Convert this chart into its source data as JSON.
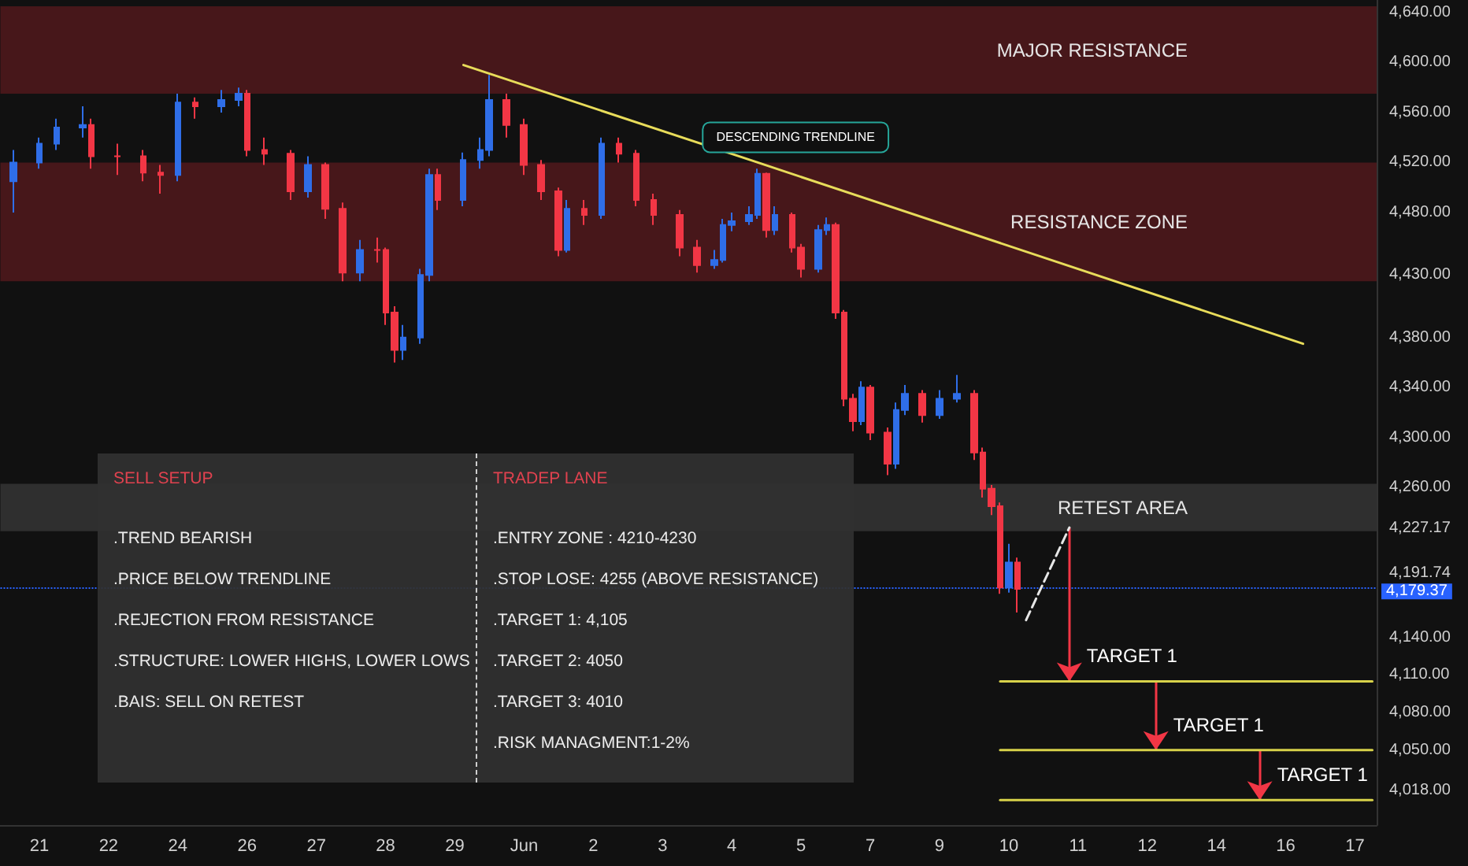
{
  "chart_data": [
    {
      "type": "candlestick",
      "categories": [
        null,
        null,
        null,
        null,
        "21",
        null,
        null,
        null,
        null,
        null,
        null,
        null,
        "22",
        null,
        null,
        null,
        null,
        null,
        null,
        null,
        "24",
        null,
        null,
        null,
        null,
        null,
        null,
        null,
        "26",
        null,
        null,
        null,
        null,
        null,
        null,
        null,
        "27",
        null,
        null,
        null,
        null,
        null,
        null,
        null,
        "28",
        null,
        null,
        null,
        null,
        null,
        null,
        null,
        "29",
        null,
        null,
        null,
        null,
        null,
        null,
        null,
        "Jun",
        null,
        null,
        null,
        null,
        null,
        null,
        null,
        "2",
        null,
        null,
        null,
        null,
        null,
        null,
        null,
        "3",
        null,
        null,
        null,
        null,
        null,
        null,
        null,
        "4",
        null,
        null,
        null,
        null,
        null,
        null,
        null,
        "5",
        null,
        null,
        null,
        null,
        null,
        null,
        null,
        "7",
        null,
        null,
        null,
        null,
        null,
        null,
        null,
        "9",
        null,
        null,
        null,
        null,
        null,
        null,
        null,
        "10",
        null,
        null,
        null,
        null,
        null,
        null,
        null,
        "11",
        null,
        null,
        null,
        null,
        null,
        null,
        null,
        "12",
        null,
        null,
        null,
        null,
        null,
        null,
        null,
        "14",
        null,
        null,
        null,
        null,
        null,
        null,
        null,
        "16",
        null,
        null,
        null,
        null,
        null,
        null,
        null,
        "17",
        null,
        null
      ],
      "ohlc": [
        null,
        [
          4505,
          4530,
          4480,
          4520
        ],
        null,
        null,
        [
          4520,
          4540,
          4515,
          4535
        ],
        null,
        [
          4535,
          4555,
          4530,
          4548
        ],
        null,
        null,
        [
          4548,
          4565,
          4540,
          4550
        ],
        [
          4550,
          4555,
          4515,
          4525
        ],
        null,
        null,
        [
          4525,
          4535,
          4510,
          4525
        ],
        null,
        null,
        [
          4525,
          4530,
          4505,
          4512
        ],
        null,
        [
          4512,
          4518,
          4495,
          4510
        ],
        null,
        [
          4510,
          4575,
          4505,
          4568
        ],
        null,
        [
          4568,
          4572,
          4555,
          4565
        ],
        null,
        null,
        [
          4565,
          4578,
          4560,
          4570
        ],
        null,
        [
          4570,
          4580,
          4565,
          4575
        ],
        [
          4575,
          4578,
          4525,
          4530
        ],
        null,
        [
          4530,
          4540,
          4518,
          4527
        ],
        null,
        null,
        [
          4527,
          4530,
          4490,
          4497
        ],
        null,
        [
          4497,
          4525,
          4492,
          4518
        ],
        null,
        [
          4518,
          4520,
          4475,
          4483
        ],
        null,
        [
          4483,
          4488,
          4425,
          4432
        ],
        null,
        [
          4432,
          4458,
          4425,
          4450
        ],
        null,
        [
          4450,
          4460,
          4440,
          4450
        ],
        [
          4450,
          4452,
          4390,
          4400
        ],
        [
          4400,
          4405,
          4360,
          4370
        ],
        [
          4370,
          4390,
          4362,
          4380
        ],
        null,
        [
          4380,
          4435,
          4375,
          4430
        ],
        [
          4430,
          4515,
          4425,
          4510
        ],
        [
          4510,
          4515,
          4482,
          4490
        ],
        null,
        null,
        [
          4490,
          4528,
          4485,
          4522
        ],
        null,
        [
          4522,
          4540,
          4515,
          4530
        ],
        [
          4530,
          4590,
          4525,
          4570
        ],
        null,
        [
          4570,
          4575,
          4540,
          4550
        ],
        null,
        [
          4550,
          4555,
          4510,
          4518
        ],
        null,
        [
          4518,
          4522,
          4490,
          4497
        ],
        null,
        [
          4497,
          4500,
          4445,
          4450
        ],
        [
          4450,
          4490,
          4448,
          4483
        ],
        null,
        [
          4483,
          4490,
          4470,
          4478
        ],
        null,
        [
          4478,
          4540,
          4475,
          4535
        ],
        null,
        [
          4535,
          4540,
          4520,
          4527
        ],
        null,
        [
          4527,
          4530,
          4485,
          4490
        ],
        null,
        [
          4490,
          4495,
          4470,
          4478
        ],
        null,
        null,
        [
          4478,
          4482,
          4445,
          4452
        ],
        null,
        [
          4452,
          4458,
          4432,
          4438
        ],
        null,
        [
          4438,
          4450,
          4435,
          4442
        ],
        [
          4442,
          4475,
          4440,
          4470
        ],
        [
          4470,
          4480,
          4465,
          4473
        ],
        null,
        [
          4473,
          4485,
          4470,
          4478
        ],
        [
          4478,
          4515,
          4475,
          4511
        ],
        [
          4511,
          4512,
          4460,
          4466
        ],
        [
          4466,
          4485,
          4462,
          4478
        ],
        null,
        [
          4478,
          4480,
          4448,
          4452
        ],
        [
          4452,
          4455,
          4428,
          4435
        ],
        null,
        [
          4435,
          4470,
          4432,
          4466
        ],
        [
          4466,
          4476,
          4462,
          4470
        ],
        [
          4470,
          4472,
          4395,
          4400
        ],
        [
          4400,
          4402,
          4325,
          4331
        ],
        [
          4331,
          4335,
          4305,
          4313
        ],
        [
          4313,
          4345,
          4310,
          4340
        ],
        [
          4340,
          4342,
          4298,
          4304
        ],
        null,
        [
          4304,
          4308,
          4270,
          4279
        ],
        [
          4279,
          4328,
          4275,
          4322
        ],
        [
          4322,
          4342,
          4318,
          4335
        ],
        null,
        [
          4335,
          4338,
          4312,
          4318
        ],
        null,
        [
          4318,
          4338,
          4315,
          4331
        ],
        null,
        [
          4331,
          4350,
          4328,
          4335
        ],
        null,
        [
          4335,
          4338,
          4282,
          4288
        ],
        [
          4288,
          4292,
          4252,
          4259
        ],
        [
          4259,
          4262,
          4238,
          4245
        ],
        [
          4245,
          4248,
          4175,
          4180
        ],
        [
          4180,
          4215,
          4176,
          4200
        ],
        [
          4200,
          4204,
          4160,
          4179
        ],
        null,
        null,
        null,
        null,
        null,
        null,
        null,
        null,
        null,
        null,
        null,
        null,
        null,
        null,
        null,
        null,
        null,
        null,
        null,
        null,
        null,
        null,
        null,
        null,
        null,
        null,
        null,
        null,
        null,
        null,
        null,
        null,
        null,
        null,
        null,
        null,
        null,
        null,
        null,
        null,
        null
      ],
      "series": [
        {
          "type": "line",
          "name": "DESCENDING TRENDLINE",
          "color": "#e8dc5a",
          "values": [
            null,
            null,
            null,
            null,
            null,
            null,
            null,
            null,
            null,
            null,
            null,
            null,
            null,
            null,
            null,
            null,
            null,
            null,
            null,
            null,
            null,
            null,
            null,
            null,
            null,
            null,
            null,
            null,
            null,
            null,
            null,
            null,
            null,
            null,
            null,
            null,
            null,
            null,
            null,
            null,
            null,
            null,
            null,
            null,
            null,
            null,
            null,
            null,
            null,
            null,
            null,
            null,
            null,
            4598,
            null,
            null,
            null,
            null,
            null,
            null,
            null,
            null,
            null,
            null,
            null,
            null,
            null,
            null,
            null,
            null,
            null,
            null,
            null,
            null,
            null,
            null,
            null,
            null,
            null,
            null,
            null,
            null,
            null,
            null,
            null,
            null,
            null,
            4520,
            null,
            null,
            null,
            null,
            null,
            null,
            null,
            null,
            null,
            null,
            null,
            null,
            null,
            null,
            null,
            null,
            null,
            null,
            null,
            null,
            null,
            null,
            null,
            null,
            null,
            null,
            null,
            null,
            null,
            null,
            null,
            null,
            null,
            null,
            null,
            null,
            null,
            null,
            null,
            null,
            null,
            null,
            null,
            null,
            null,
            null,
            null,
            null,
            null,
            null,
            null,
            null,
            null,
            null,
            null,
            null,
            null,
            null,
            null,
            null,
            null,
            null,
            4375,
            null,
            null,
            null,
            null,
            null,
            null,
            null,
            null
          ]
        },
        {
          "type": "line",
          "color": "#e6e6e6",
          "line_style": "dashed",
          "values": [
            null,
            null,
            null,
            null,
            null,
            null,
            null,
            null,
            null,
            null,
            null,
            null,
            null,
            null,
            null,
            null,
            null,
            null,
            null,
            null,
            null,
            null,
            null,
            null,
            null,
            null,
            null,
            null,
            null,
            null,
            null,
            null,
            null,
            null,
            null,
            null,
            null,
            null,
            null,
            null,
            null,
            null,
            null,
            null,
            null,
            null,
            null,
            null,
            null,
            null,
            null,
            null,
            null,
            null,
            null,
            null,
            null,
            null,
            null,
            null,
            null,
            null,
            null,
            null,
            null,
            null,
            null,
            null,
            null,
            null,
            null,
            null,
            null,
            null,
            null,
            null,
            null,
            null,
            null,
            null,
            null,
            null,
            null,
            null,
            null,
            null,
            null,
            null,
            null,
            null,
            null,
            null,
            null,
            null,
            null,
            null,
            null,
            null,
            null,
            null,
            null,
            null,
            null,
            null,
            null,
            null,
            null,
            null,
            null,
            null,
            null,
            null,
            null,
            null,
            null,
            null,
            null,
            null,
            4154,
            null,
            null,
            null,
            null,
            4228,
            null,
            null,
            null,
            null,
            null,
            null,
            null,
            null,
            null,
            null,
            null,
            null,
            null,
            null,
            null,
            null,
            null,
            null,
            null,
            null,
            null,
            null,
            null,
            null,
            null,
            null,
            null,
            null,
            null,
            null,
            null,
            null,
            null,
            null,
            null
          ]
        },
        {
          "type": "line",
          "name": "TARGET 1",
          "color": "#d8d24a",
          "values": [
            null,
            null,
            null,
            null,
            null,
            null,
            null,
            null,
            null,
            null,
            null,
            null,
            null,
            null,
            null,
            null,
            null,
            null,
            null,
            null,
            null,
            null,
            null,
            null,
            null,
            null,
            null,
            null,
            null,
            null,
            null,
            null,
            null,
            null,
            null,
            null,
            null,
            null,
            null,
            null,
            null,
            null,
            null,
            null,
            null,
            null,
            null,
            null,
            null,
            null,
            null,
            null,
            null,
            null,
            null,
            null,
            null,
            null,
            null,
            null,
            null,
            null,
            null,
            null,
            null,
            null,
            null,
            null,
            null,
            null,
            null,
            null,
            null,
            null,
            null,
            null,
            null,
            null,
            null,
            null,
            null,
            null,
            null,
            null,
            null,
            null,
            null,
            null,
            null,
            null,
            null,
            null,
            null,
            null,
            null,
            null,
            null,
            null,
            null,
            null,
            null,
            null,
            null,
            null,
            null,
            null,
            null,
            null,
            null,
            null,
            null,
            null,
            null,
            null,
            null,
            4105,
            null,
            null,
            null,
            null,
            null,
            null,
            null,
            4105,
            null,
            null,
            null,
            null,
            null,
            null,
            null,
            null,
            null,
            null,
            null,
            null,
            null,
            null,
            null,
            null,
            null,
            null,
            null,
            null,
            null,
            null,
            null,
            null,
            null,
            null,
            null,
            null,
            null,
            null,
            null,
            null,
            null,
            null,
            4105
          ]
        },
        {
          "type": "line",
          "name": "TARGET 1",
          "color": "#d8d24a",
          "values": [
            null,
            null,
            null,
            null,
            null,
            null,
            null,
            null,
            null,
            null,
            null,
            null,
            null,
            null,
            null,
            null,
            null,
            null,
            null,
            null,
            null,
            null,
            null,
            null,
            null,
            null,
            null,
            null,
            null,
            null,
            null,
            null,
            null,
            null,
            null,
            null,
            null,
            null,
            null,
            null,
            null,
            null,
            null,
            null,
            null,
            null,
            null,
            null,
            null,
            null,
            null,
            null,
            null,
            null,
            null,
            null,
            null,
            null,
            null,
            null,
            null,
            null,
            null,
            null,
            null,
            null,
            null,
            null,
            null,
            null,
            null,
            null,
            null,
            null,
            null,
            null,
            null,
            null,
            null,
            null,
            null,
            null,
            null,
            null,
            null,
            null,
            null,
            null,
            null,
            null,
            null,
            null,
            null,
            null,
            null,
            null,
            null,
            null,
            null,
            null,
            null,
            null,
            null,
            null,
            null,
            null,
            null,
            null,
            null,
            null,
            null,
            null,
            null,
            null,
            null,
            4050,
            null,
            null,
            null,
            null,
            null,
            null,
            null,
            null,
            null,
            null,
            null,
            null,
            null,
            null,
            null,
            null,
            null,
            4050,
            null,
            null,
            null,
            null,
            null,
            null,
            null,
            null,
            null,
            null,
            null,
            null,
            null,
            null,
            null,
            null,
            null,
            null,
            null,
            null,
            null,
            null,
            null,
            null,
            4050
          ]
        },
        {
          "type": "line",
          "name": "TARGET 1",
          "color": "#d8d24a",
          "values": [
            null,
            null,
            null,
            null,
            null,
            null,
            null,
            null,
            null,
            null,
            null,
            null,
            null,
            null,
            null,
            null,
            null,
            null,
            null,
            null,
            null,
            null,
            null,
            null,
            null,
            null,
            null,
            null,
            null,
            null,
            null,
            null,
            null,
            null,
            null,
            null,
            null,
            null,
            null,
            null,
            null,
            null,
            null,
            null,
            null,
            null,
            null,
            null,
            null,
            null,
            null,
            null,
            null,
            null,
            null,
            null,
            null,
            null,
            null,
            null,
            null,
            null,
            null,
            null,
            null,
            null,
            null,
            null,
            null,
            null,
            null,
            null,
            null,
            null,
            null,
            null,
            null,
            null,
            null,
            null,
            null,
            null,
            null,
            null,
            null,
            null,
            null,
            null,
            null,
            null,
            null,
            null,
            null,
            null,
            null,
            null,
            null,
            null,
            null,
            null,
            null,
            null,
            null,
            null,
            null,
            null,
            null,
            null,
            null,
            null,
            null,
            null,
            null,
            null,
            null,
            4010,
            null,
            null,
            null,
            null,
            null,
            null,
            null,
            null,
            null,
            null,
            null,
            null,
            null,
            null,
            null,
            null,
            null,
            null,
            null,
            null,
            null,
            null,
            null,
            null,
            null,
            null,
            null,
            null,
            null,
            4010,
            null,
            null,
            null,
            null,
            null,
            null,
            null,
            null,
            null,
            null,
            null,
            null,
            4010
          ]
        }
      ],
      "bands": [
        {
          "axis": "y",
          "from": 4575,
          "to": 4645,
          "label": "MAJOR RESISTANCE",
          "color": "#5a1a1e"
        },
        {
          "axis": "y",
          "from": 4425,
          "to": 4520,
          "label": "RESISTANCE ZONE",
          "color": "#5a1a1e"
        },
        {
          "axis": "y",
          "from": 4225,
          "to": 4263,
          "label": "RETEST AREA",
          "color": "#3a3a3a"
        }
      ],
      "ref_lines": [
        {
          "axis": "y",
          "value": 4179.37,
          "label": "4,179.37",
          "color": "#2962ff",
          "line_style": "dotted"
        }
      ],
      "ylim": [
        3990,
        4650
      ],
      "yticks": [
        {
          "value": 4018,
          "label": "4,018.00"
        },
        {
          "value": 4050,
          "label": "4,050.00"
        },
        {
          "value": 4080,
          "label": "4,080.00"
        },
        {
          "value": 4110,
          "label": "4,110.00"
        },
        {
          "value": 4140,
          "label": "4,140.00"
        },
        {
          "value": 4191.74,
          "label": "4,191.74"
        },
        {
          "value": 4227.17,
          "label": "4,227.17"
        },
        {
          "value": 4260,
          "label": "4,260.00"
        },
        {
          "value": 4300,
          "label": "4,300.00"
        },
        {
          "value": 4340,
          "label": "4,340.00"
        },
        {
          "value": 4380,
          "label": "4,380.00"
        },
        {
          "value": 4430,
          "label": "4,430.00"
        },
        {
          "value": 4480,
          "label": "4,480.00"
        },
        {
          "value": 4520,
          "label": "4,520.00"
        },
        {
          "value": 4560,
          "label": "4,560.00"
        },
        {
          "value": 4600,
          "label": "4,600.00"
        },
        {
          "value": 4640,
          "label": "4,640.00"
        }
      ]
    },
    {
      "type": "other",
      "title": "SELL SETUP",
      "annotations": [
        ".TREND BEARISH",
        ".PRICE BELOW TRENDLINE",
        ".REJECTION FROM RESISTANCE",
        ".STRUCTURE: LOWER HIGHS, LOWER LOWS",
        ".BAIS: SELL ON RETEST"
      ]
    },
    {
      "type": "other",
      "title": "TRADEP LANE",
      "annotations": [
        ".ENTRY ZONE : 4210-4230",
        ".STOP LOSE: 4255 (ABOVE RESISTANCE)",
        ".TARGET 1: 4,105",
        ".TARGET 2: 4050",
        ".TARGET 3: 4010",
        ".RISK MANAGMENT:1-2%"
      ]
    }
  ]
}
